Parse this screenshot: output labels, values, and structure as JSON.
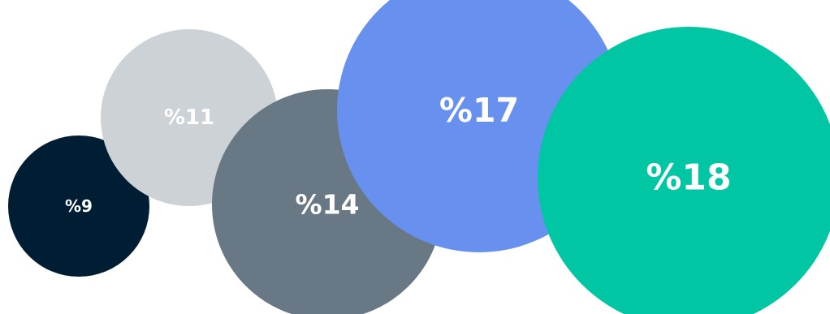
{
  "chart_data": {
    "type": "bubble",
    "title": "",
    "series": [
      {
        "label": "%9",
        "value": 9,
        "color": "#001e33"
      },
      {
        "label": "%11",
        "value": 11,
        "color": "#cdd2d6"
      },
      {
        "label": "%14",
        "value": 14,
        "color": "#687985"
      },
      {
        "label": "%17",
        "value": 17,
        "color": "#6890ee"
      },
      {
        "label": "%18",
        "value": 18,
        "color": "#00c6a3"
      }
    ],
    "grid": false,
    "legend": "none"
  }
}
